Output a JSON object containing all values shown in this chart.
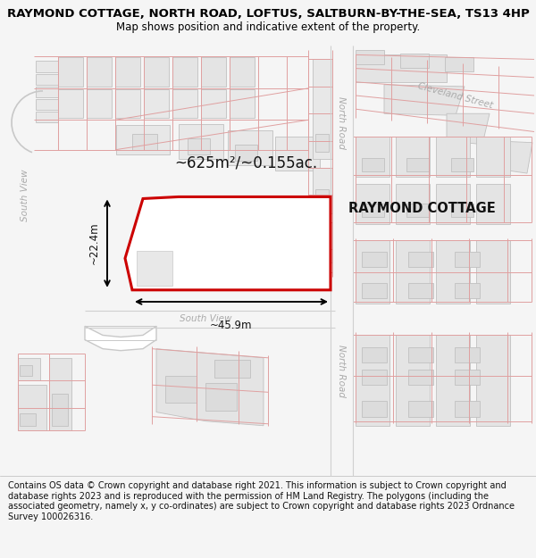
{
  "title": "RAYMOND COTTAGE, NORTH ROAD, LOFTUS, SALTBURN-BY-THE-SEA, TS13 4HP",
  "subtitle": "Map shows position and indicative extent of the property.",
  "footer": "Contains OS data © Crown copyright and database right 2021. This information is subject to Crown copyright and database rights 2023 and is reproduced with the permission of HM Land Registry. The polygons (including the associated geometry, namely x, y co-ordinates) are subject to Crown copyright and database rights 2023 Ordnance Survey 100026316.",
  "property_label": "RAYMOND COTTAGE",
  "area_label": "~625m²/~0.155ac.",
  "width_label": "~45.9m",
  "height_label": "~22.4m",
  "title_fontsize": 9.5,
  "subtitle_fontsize": 8.5,
  "footer_fontsize": 7.0,
  "bg_color": "#f5f5f5",
  "map_bg": "#ffffff",
  "building_fill": "#e8e8e8",
  "building_edge": "#c0c0c0",
  "road_outline_color": "#e0a0a0",
  "property_color": "#cc0000",
  "north_road_label_color": "#aaaaaa",
  "street_label_color": "#aaaaaa"
}
